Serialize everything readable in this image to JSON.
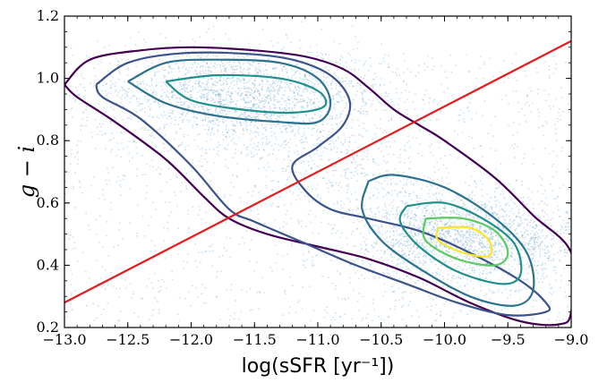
{
  "chart_data": {
    "type": "scatter",
    "title": "",
    "xlabel": "log(sSFR [yr⁻¹])",
    "ylabel": "g − i",
    "xlim": [
      -13.0,
      -9.0
    ],
    "ylim": [
      0.2,
      1.2
    ],
    "xticks": [
      -13.0,
      -12.5,
      -12.0,
      -11.5,
      -11.0,
      -10.5,
      -10.0,
      -9.5,
      -9.0
    ],
    "xtick_labels": [
      "−13.0",
      "−12.5",
      "−12.0",
      "−11.5",
      "−11.0",
      "−10.5",
      "−10.0",
      "−9.5",
      "−9.0"
    ],
    "yticks": [
      0.2,
      0.4,
      0.6,
      0.8,
      1.0,
      1.2
    ],
    "ytick_labels": [
      "0.2",
      "0.4",
      "0.6",
      "0.8",
      "1.0",
      "1.2"
    ],
    "grid": false,
    "scatter_color": "#1f77b4",
    "scatter_description": "dense cloud of faint blue points spread over the whole plot area",
    "clusters": [
      {
        "center": [
          -11.6,
          0.95
        ],
        "spread": [
          0.55,
          0.08
        ]
      },
      {
        "center": [
          -9.8,
          0.48
        ],
        "spread": [
          0.45,
          0.07
        ]
      }
    ],
    "contours": [
      {
        "level": 1,
        "color": "#440154",
        "x": [
          -13.0,
          -12.8,
          -12.4,
          -12.0,
          -11.5,
          -11.1,
          -10.8,
          -10.6,
          -10.4,
          -10.2,
          -10.0,
          -9.6,
          -9.3,
          -9.0,
          -9.0,
          -9.1,
          -9.4,
          -9.8,
          -10.2,
          -10.6,
          -11.0,
          -11.4,
          -11.7,
          -11.9,
          -12.2,
          -12.6,
          -12.9,
          -13.0
        ],
        "y": [
          0.98,
          1.06,
          1.09,
          1.1,
          1.09,
          1.07,
          1.03,
          0.97,
          0.9,
          0.85,
          0.8,
          0.68,
          0.56,
          0.44,
          0.25,
          0.21,
          0.22,
          0.28,
          0.36,
          0.42,
          0.46,
          0.5,
          0.55,
          0.62,
          0.74,
          0.86,
          0.94,
          0.98
        ]
      },
      {
        "level": 2,
        "color": "#3b528b",
        "x": [
          -12.75,
          -12.5,
          -12.1,
          -11.6,
          -11.2,
          -10.9,
          -10.75,
          -10.8,
          -11.0,
          -11.2,
          -11.1,
          -10.9,
          -10.6,
          -10.2,
          -9.8,
          -9.4,
          -9.2,
          -9.2,
          -9.5,
          -9.9,
          -10.3,
          -10.7,
          -11.1,
          -11.5,
          -11.7,
          -12.0,
          -12.4,
          -12.7,
          -12.75
        ],
        "y": [
          0.98,
          1.05,
          1.08,
          1.08,
          1.06,
          1.01,
          0.93,
          0.85,
          0.78,
          0.72,
          0.64,
          0.58,
          0.55,
          0.51,
          0.44,
          0.35,
          0.28,
          0.25,
          0.24,
          0.28,
          0.34,
          0.4,
          0.47,
          0.54,
          0.58,
          0.72,
          0.87,
          0.94,
          0.98
        ]
      },
      {
        "level": 3,
        "color": "#2c728e",
        "x": [
          -12.5,
          -12.2,
          -11.8,
          -11.3,
          -11.0,
          -10.9,
          -11.0,
          -11.3,
          -11.8,
          -12.2,
          -12.5
        ],
        "y": [
          0.99,
          1.05,
          1.06,
          1.05,
          1.0,
          0.92,
          0.86,
          0.86,
          0.88,
          0.92,
          0.99
        ]
      },
      {
        "level": 3,
        "color": "#2c728e",
        "x": [
          -10.6,
          -10.4,
          -10.0,
          -9.6,
          -9.35,
          -9.3,
          -9.45,
          -9.8,
          -10.2,
          -10.5,
          -10.65,
          -10.6
        ],
        "y": [
          0.67,
          0.69,
          0.65,
          0.55,
          0.44,
          0.32,
          0.27,
          0.3,
          0.39,
          0.48,
          0.58,
          0.67
        ]
      },
      {
        "level": 4,
        "color": "#21908d",
        "x": [
          -12.2,
          -11.8,
          -11.3,
          -11.0,
          -10.95,
          -11.2,
          -11.6,
          -12.0,
          -12.2
        ],
        "y": [
          0.99,
          1.01,
          1.0,
          0.96,
          0.91,
          0.89,
          0.9,
          0.93,
          0.99
        ]
      },
      {
        "level": 4,
        "color": "#21908d",
        "x": [
          -10.3,
          -10.0,
          -9.7,
          -9.45,
          -9.4,
          -9.55,
          -9.9,
          -10.2,
          -10.35,
          -10.3
        ],
        "y": [
          0.59,
          0.6,
          0.55,
          0.47,
          0.37,
          0.34,
          0.38,
          0.46,
          0.54,
          0.59
        ]
      },
      {
        "level": 5,
        "color": "#5ec962",
        "x": [
          -10.15,
          -9.85,
          -9.6,
          -9.5,
          -9.6,
          -9.9,
          -10.15,
          -10.15
        ],
        "y": [
          0.55,
          0.55,
          0.51,
          0.44,
          0.4,
          0.42,
          0.48,
          0.55
        ]
      },
      {
        "level": 6,
        "color": "#fde725",
        "x": [
          -10.05,
          -9.8,
          -9.65,
          -9.65,
          -9.85,
          -10.05,
          -10.05
        ],
        "y": [
          0.52,
          0.52,
          0.48,
          0.43,
          0.44,
          0.48,
          0.52
        ]
      }
    ],
    "line": {
      "color": "#e41a1c",
      "x": [
        -13.0,
        -9.0
      ],
      "y": [
        0.28,
        1.12
      ]
    }
  }
}
